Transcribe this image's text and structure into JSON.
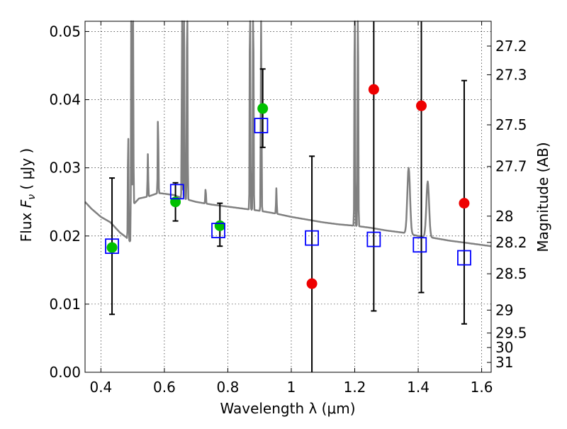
{
  "chart_data": {
    "type": "scatter",
    "xlabel": "Wavelength  λ (μm)",
    "ylabel_left": {
      "prefix": "Flux  ",
      "symbol": "F",
      "subscript": "ν",
      "unit": " ( μJy )"
    },
    "ylabel_right": "Magnitude (AB)",
    "xlim": [
      0.35,
      1.63
    ],
    "ylim": [
      0.0,
      0.0515
    ],
    "x_ticks": [
      0.4,
      0.6,
      0.8,
      1.0,
      1.2,
      1.4,
      1.6
    ],
    "x_tick_labels": [
      "0.4",
      "0.6",
      "0.8",
      "1",
      "1.2",
      "1.4",
      "1.6"
    ],
    "y_ticks": [
      0.0,
      0.01,
      0.02,
      0.03,
      0.04,
      0.05
    ],
    "y_tick_labels": [
      "0.00",
      "0.01",
      "0.02",
      "0.03",
      "0.04",
      "0.05"
    ],
    "magnitude_ticks": [
      "27.2",
      "27.3",
      "27.5",
      "27.7",
      "28",
      "28.2",
      "28.5",
      "29",
      "29.5",
      "30",
      "31"
    ],
    "grid": true,
    "colors": {
      "spectrum": "#808080",
      "green_points": "#00c000",
      "red_points": "#ee0000",
      "model_squares": "#0000ff",
      "error_bars": "#000000"
    },
    "spectrum": {
      "continuum": [
        [
          0.35,
          0.025
        ],
        [
          0.37,
          0.024
        ],
        [
          0.4,
          0.0228
        ],
        [
          0.43,
          0.022
        ],
        [
          0.46,
          0.0205
        ],
        [
          0.48,
          0.0198
        ],
        [
          0.495,
          0.019
        ],
        [
          0.5,
          0.0245
        ],
        [
          0.52,
          0.0255
        ],
        [
          0.55,
          0.0258
        ],
        [
          0.58,
          0.0263
        ],
        [
          0.6,
          0.0262
        ],
        [
          0.63,
          0.026
        ],
        [
          0.66,
          0.0255
        ],
        [
          0.7,
          0.025
        ],
        [
          0.75,
          0.0246
        ],
        [
          0.8,
          0.0243
        ],
        [
          0.85,
          0.024
        ],
        [
          0.9,
          0.0237
        ],
        [
          0.95,
          0.0233
        ],
        [
          1.0,
          0.0228
        ],
        [
          1.05,
          0.0224
        ],
        [
          1.1,
          0.022
        ],
        [
          1.15,
          0.0217
        ],
        [
          1.2,
          0.0215
        ],
        [
          1.25,
          0.0212
        ],
        [
          1.3,
          0.0208
        ],
        [
          1.35,
          0.0205
        ],
        [
          1.4,
          0.02
        ],
        [
          1.45,
          0.0197
        ],
        [
          1.5,
          0.0193
        ],
        [
          1.55,
          0.019
        ],
        [
          1.63,
          0.0185
        ]
      ],
      "lines": [
        {
          "x": 0.486,
          "peak": 0.036
        },
        {
          "x": 0.496,
          "peak": 0.06
        },
        {
          "x": 0.501,
          "peak": 0.06
        },
        {
          "x": 0.548,
          "peak": 0.032
        },
        {
          "x": 0.58,
          "peak": 0.038
        },
        {
          "x": 0.656,
          "peak": 0.06
        },
        {
          "x": 0.662,
          "peak": 0.06
        },
        {
          "x": 0.672,
          "peak": 0.06
        },
        {
          "x": 0.73,
          "peak": 0.027
        },
        {
          "x": 0.87,
          "peak": 0.06
        },
        {
          "x": 0.88,
          "peak": 0.06
        },
        {
          "x": 0.905,
          "peak": 0.06
        },
        {
          "x": 0.953,
          "peak": 0.027
        },
        {
          "x": 1.2,
          "peak": 0.06
        },
        {
          "x": 1.21,
          "peak": 0.06
        },
        {
          "x": 1.37,
          "peak": 0.03
        },
        {
          "x": 1.43,
          "peak": 0.028
        }
      ]
    },
    "observed_points": [
      {
        "x": 0.435,
        "y": 0.0183,
        "err_low": 0.0085,
        "err_high": 0.0285,
        "color": "green"
      },
      {
        "x": 0.635,
        "y": 0.025,
        "err_low": 0.0222,
        "err_high": 0.0278,
        "color": "green"
      },
      {
        "x": 0.775,
        "y": 0.0215,
        "err_low": 0.0185,
        "err_high": 0.0248,
        "color": "green"
      },
      {
        "x": 0.91,
        "y": 0.0387,
        "err_low": 0.033,
        "err_high": 0.0445,
        "color": "green"
      },
      {
        "x": 1.065,
        "y": 0.013,
        "err_low": 0.0,
        "err_high": 0.0317,
        "color": "red"
      },
      {
        "x": 1.26,
        "y": 0.0415,
        "err_low": 0.009,
        "err_high": 0.0515,
        "color": "red"
      },
      {
        "x": 1.41,
        "y": 0.0391,
        "err_low": 0.0117,
        "err_high": 0.0515,
        "color": "red"
      },
      {
        "x": 1.545,
        "y": 0.0248,
        "err_low": 0.0071,
        "err_high": 0.0428,
        "color": "red"
      }
    ],
    "model_squares": [
      {
        "x": 0.435,
        "y": 0.0185
      },
      {
        "x": 0.64,
        "y": 0.0265
      },
      {
        "x": 0.77,
        "y": 0.0208
      },
      {
        "x": 0.905,
        "y": 0.0362
      },
      {
        "x": 1.065,
        "y": 0.0197
      },
      {
        "x": 1.26,
        "y": 0.0195
      },
      {
        "x": 1.405,
        "y": 0.0187
      },
      {
        "x": 1.545,
        "y": 0.0168
      }
    ]
  }
}
